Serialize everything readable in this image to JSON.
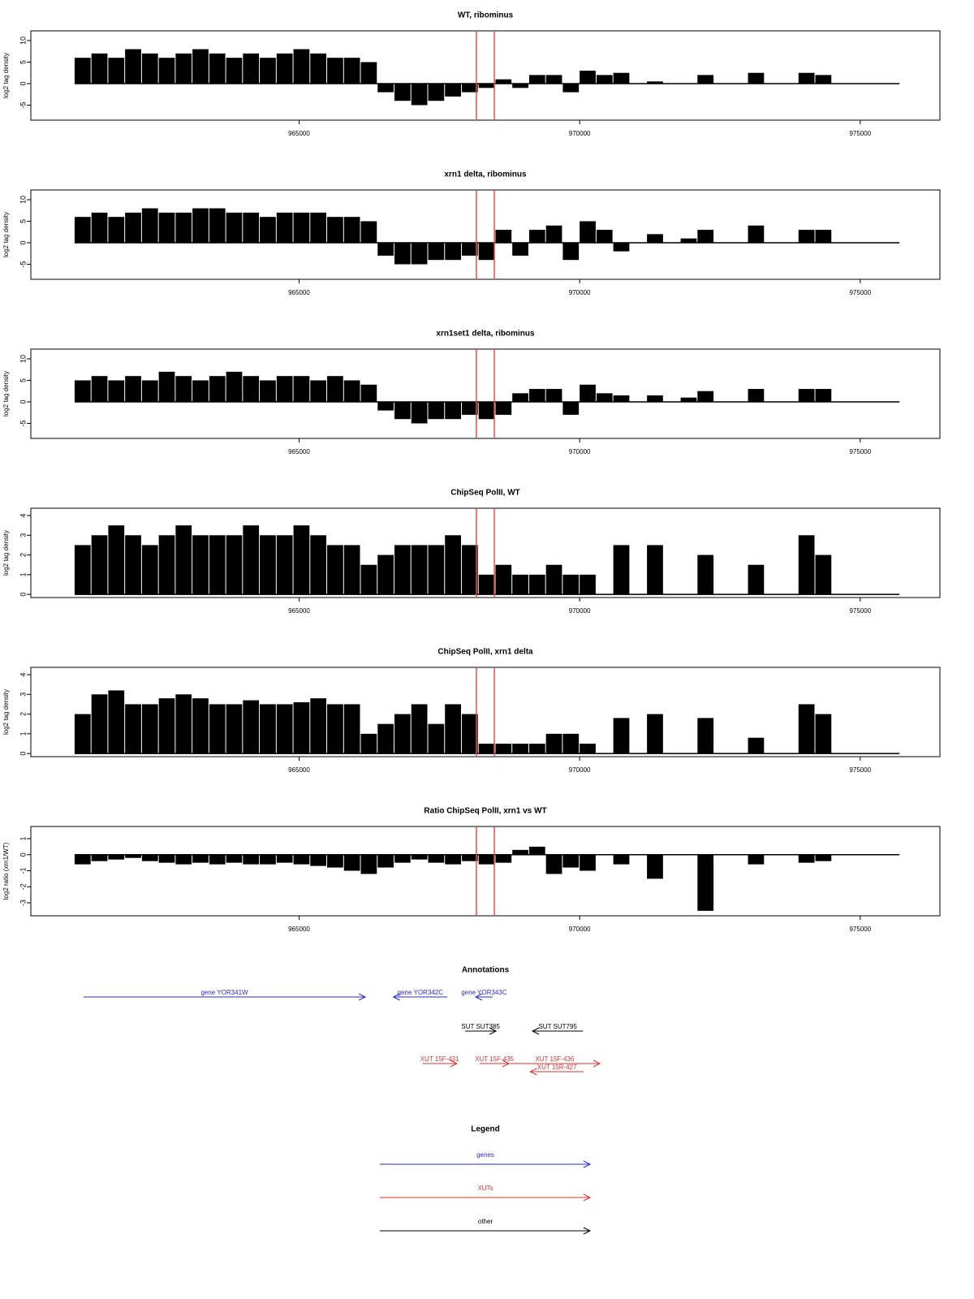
{
  "chart_data": [
    {
      "type": "bar",
      "title": "WT, ribominus",
      "ylabel": "log2 tag density",
      "x": [
        961000,
        961300,
        961600,
        961900,
        962200,
        962500,
        962800,
        963100,
        963400,
        963700,
        964000,
        964300,
        964600,
        964900,
        965200,
        965500,
        965800,
        966100,
        966400,
        966700,
        967000,
        967300,
        967600,
        967900,
        968200,
        968500,
        968800,
        969100,
        969400,
        969700,
        970000,
        970300,
        970600,
        970900,
        971200,
        971500,
        971800,
        972100,
        972400,
        972700,
        973000,
        973300,
        973600,
        973900,
        974200,
        974500,
        974800,
        975100,
        975400
      ],
      "values": [
        6,
        7,
        6,
        8,
        7,
        6,
        7,
        8,
        7,
        6,
        7,
        6,
        7,
        8,
        7,
        6,
        6,
        5,
        -2,
        -4,
        -5,
        -4,
        -3,
        -2,
        -1,
        1,
        -1,
        2,
        2,
        -2,
        3,
        2,
        2.5,
        0,
        0.5,
        0,
        0,
        2,
        0,
        0,
        2.5,
        0,
        0,
        2.5,
        2,
        0,
        0,
        0,
        0
      ],
      "color": "#000000",
      "xlim": [
        960220,
        976420
      ],
      "ylim": [
        -8.49,
        12.26
      ],
      "xticks": [
        965000,
        970000,
        975000
      ],
      "yticks": [
        -5,
        0,
        5,
        10
      ],
      "highlight_x": [
        968160,
        968480
      ],
      "highlight_color": "#e05050"
    },
    {
      "type": "bar",
      "title": "xrn1 delta, ribominus",
      "ylabel": "log2 tag density",
      "x": [
        961000,
        961300,
        961600,
        961900,
        962200,
        962500,
        962800,
        963100,
        963400,
        963700,
        964000,
        964300,
        964600,
        964900,
        965200,
        965500,
        965800,
        966100,
        966400,
        966700,
        967000,
        967300,
        967600,
        967900,
        968200,
        968500,
        968800,
        969100,
        969400,
        969700,
        970000,
        970300,
        970600,
        970900,
        971200,
        971500,
        971800,
        972100,
        972400,
        972700,
        973000,
        973300,
        973600,
        973900,
        974200,
        974500,
        974800,
        975100,
        975400
      ],
      "values": [
        6,
        7,
        6,
        7,
        8,
        7,
        7,
        8,
        8,
        7,
        7,
        6,
        7,
        7,
        7,
        6,
        6,
        5,
        -3,
        -5,
        -5,
        -4,
        -4,
        -3,
        -4,
        3,
        -3,
        3,
        4,
        -4,
        5,
        3,
        -2,
        0,
        2,
        0,
        1,
        3,
        0,
        0,
        4,
        0,
        0,
        3,
        3,
        0,
        0,
        0,
        0
      ],
      "color": "#000000",
      "xlim": [
        960220,
        976420
      ],
      "ylim": [
        -8.49,
        12.26
      ],
      "xticks": [
        965000,
        970000,
        975000
      ],
      "yticks": [
        -5,
        0,
        5,
        10
      ],
      "highlight_x": [
        968160,
        968480
      ],
      "highlight_color": "#e05050"
    },
    {
      "type": "bar",
      "title": "xrn1set1 delta, ribominus",
      "ylabel": "log2 tag density",
      "x": [
        961000,
        961300,
        961600,
        961900,
        962200,
        962500,
        962800,
        963100,
        963400,
        963700,
        964000,
        964300,
        964600,
        964900,
        965200,
        965500,
        965800,
        966100,
        966400,
        966700,
        967000,
        967300,
        967600,
        967900,
        968200,
        968500,
        968800,
        969100,
        969400,
        969700,
        970000,
        970300,
        970600,
        970900,
        971200,
        971500,
        971800,
        972100,
        972400,
        972700,
        973000,
        973300,
        973600,
        973900,
        974200,
        974500,
        974800,
        975100,
        975400
      ],
      "values": [
        5,
        6,
        5,
        6,
        5,
        7,
        6,
        5,
        6,
        7,
        6,
        5,
        6,
        6,
        5,
        6,
        5,
        4,
        -2,
        -4,
        -5,
        -4,
        -4,
        -3,
        -4,
        -3,
        2,
        3,
        3,
        -3,
        4,
        2,
        1.5,
        0,
        1.5,
        0,
        1,
        2.5,
        0,
        0,
        3,
        0,
        0,
        3,
        3,
        0,
        0,
        0,
        0
      ],
      "color": "#000000",
      "xlim": [
        960220,
        976420
      ],
      "ylim": [
        -8.49,
        12.26
      ],
      "xticks": [
        965000,
        970000,
        975000
      ],
      "yticks": [
        -5,
        0,
        5,
        10
      ],
      "highlight_x": [
        968160,
        968480
      ],
      "highlight_color": "#e05050"
    },
    {
      "type": "bar",
      "title": "ChipSeq PolII, WT",
      "ylabel": "log2 tag density",
      "x": [
        961000,
        961300,
        961600,
        961900,
        962200,
        962500,
        962800,
        963100,
        963400,
        963700,
        964000,
        964300,
        964600,
        964900,
        965200,
        965500,
        965800,
        966100,
        966400,
        966700,
        967000,
        967300,
        967600,
        967900,
        968200,
        968500,
        968800,
        969100,
        969400,
        969700,
        970000,
        970300,
        970600,
        970900,
        971200,
        971500,
        971800,
        972100,
        972400,
        972700,
        973000,
        973300,
        973600,
        973900,
        974200,
        974500,
        974800,
        975100,
        975400
      ],
      "values": [
        2.5,
        3,
        3.5,
        3,
        2.5,
        3,
        3.5,
        3,
        3,
        3,
        3.5,
        3,
        3,
        3.5,
        3,
        2.5,
        2.5,
        1.5,
        2,
        2.5,
        2.5,
        2.5,
        3,
        2.5,
        1,
        1.5,
        1,
        1,
        1.5,
        1,
        1,
        0,
        2.5,
        0,
        2.5,
        0,
        0,
        2,
        0,
        0,
        1.5,
        0,
        0,
        3,
        2,
        0,
        0,
        0,
        0
      ],
      "color": "#000000",
      "xlim": [
        960220,
        976420
      ],
      "ylim": [
        -0.16,
        4.37
      ],
      "xticks": [
        965000,
        970000,
        975000
      ],
      "yticks": [
        0,
        1,
        2,
        3,
        4
      ],
      "highlight_x": [
        968160,
        968480
      ],
      "highlight_color": "#e05050"
    },
    {
      "type": "bar",
      "title": "ChipSeq PolII, xrn1 delta",
      "ylabel": "log2 tag density",
      "x": [
        961000,
        961300,
        961600,
        961900,
        962200,
        962500,
        962800,
        963100,
        963400,
        963700,
        964000,
        964300,
        964600,
        964900,
        965200,
        965500,
        965800,
        966100,
        966400,
        966700,
        967000,
        967300,
        967600,
        967900,
        968200,
        968500,
        968800,
        969100,
        969400,
        969700,
        970000,
        970300,
        970600,
        970900,
        971200,
        971500,
        971800,
        972100,
        972400,
        972700,
        973000,
        973300,
        973600,
        973900,
        974200,
        974500,
        974800,
        975100,
        975400
      ],
      "values": [
        2,
        3,
        3.2,
        2.5,
        2.5,
        2.8,
        3,
        2.8,
        2.5,
        2.5,
        2.7,
        2.5,
        2.5,
        2.6,
        2.8,
        2.5,
        2.5,
        1,
        1.5,
        2,
        2.5,
        1.5,
        2.5,
        2,
        0.5,
        0.5,
        0.5,
        0.5,
        1,
        1,
        0.5,
        0,
        1.8,
        0,
        2,
        0,
        0,
        1.8,
        0,
        0,
        0.8,
        0,
        0,
        2.5,
        2,
        0,
        0,
        0,
        0
      ],
      "color": "#000000",
      "xlim": [
        960220,
        976420
      ],
      "ylim": [
        -0.16,
        4.37
      ],
      "xticks": [
        965000,
        970000,
        975000
      ],
      "yticks": [
        0,
        1,
        2,
        3,
        4
      ],
      "highlight_x": [
        968160,
        968480
      ],
      "highlight_color": "#e05050"
    },
    {
      "type": "bar",
      "title": "Ratio ChipSeq PolII, xrn1 vs WT",
      "ylabel": "log2 ratio (xrn1/WT)",
      "x": [
        961000,
        961300,
        961600,
        961900,
        962200,
        962500,
        962800,
        963100,
        963400,
        963700,
        964000,
        964300,
        964600,
        964900,
        965200,
        965500,
        965800,
        966100,
        966400,
        966700,
        967000,
        967300,
        967600,
        967900,
        968200,
        968500,
        968800,
        969100,
        969400,
        969700,
        970000,
        970300,
        970600,
        970900,
        971200,
        971500,
        971800,
        972100,
        972400,
        972700,
        973000,
        973300,
        973600,
        973900,
        974200,
        974500,
        974800,
        975100,
        975400
      ],
      "values": [
        -0.6,
        -0.4,
        -0.3,
        -0.2,
        -0.4,
        -0.5,
        -0.6,
        -0.5,
        -0.6,
        -0.5,
        -0.6,
        -0.6,
        -0.5,
        -0.6,
        -0.7,
        -0.8,
        -1.0,
        -1.2,
        -0.8,
        -0.5,
        -0.3,
        -0.5,
        -0.6,
        -0.4,
        -0.6,
        -0.5,
        0.3,
        0.5,
        -1.2,
        -0.8,
        -1,
        0,
        -0.6,
        0,
        -1.5,
        0,
        0,
        -3.5,
        0,
        0,
        -0.6,
        0,
        0,
        -0.5,
        -0.4,
        0,
        0,
        0,
        0
      ],
      "color": "#000000",
      "xlim": [
        960220,
        976420
      ],
      "ylim": [
        -3.81,
        1.76
      ],
      "xticks": [
        965000,
        970000,
        975000
      ],
      "yticks": [
        -3,
        -2,
        -1,
        0,
        1
      ],
      "highlight_x": [
        968160,
        968480
      ],
      "highlight_color": "#e05050"
    }
  ],
  "annotations": {
    "title": "Annotations",
    "groups": [
      {
        "color": "#2a2ad8",
        "features": [
          {
            "label": "gene YOR341W",
            "start": 961160,
            "end": 966180,
            "strand": "+"
          },
          {
            "label": "gene YOR342C",
            "start": 966680,
            "end": 967640,
            "strand": "-"
          },
          {
            "label": "gene YOR343C",
            "start": 968145,
            "end": 968450,
            "strand": "-"
          }
        ]
      },
      {
        "color": "#000000",
        "features": [
          {
            "label": "SUT SUT385",
            "start": 967960,
            "end": 968510,
            "strand": "+"
          },
          {
            "label": "SUT SUT795",
            "start": 969160,
            "end": 970060,
            "strand": "-"
          }
        ]
      },
      {
        "color": "#e03030",
        "features": [
          {
            "label": "XUT 15F-431",
            "start": 967200,
            "end": 967810,
            "strand": "+"
          },
          {
            "label": "XUT 15F-435",
            "start": 968220,
            "end": 968740,
            "strand": "+"
          },
          {
            "label": "XUT 15F-436",
            "start": 968750,
            "end": 970360,
            "strand": "+"
          },
          {
            "label": "XUT 15R-427",
            "start": 969120,
            "end": 970070,
            "strand": "-"
          }
        ]
      }
    ]
  },
  "legend": {
    "title": "Legend",
    "items": [
      {
        "label": "genes",
        "color": "#2a2ad8"
      },
      {
        "label": "XUTs",
        "color": "#e03030"
      },
      {
        "label": "other",
        "color": "#000000"
      }
    ]
  }
}
